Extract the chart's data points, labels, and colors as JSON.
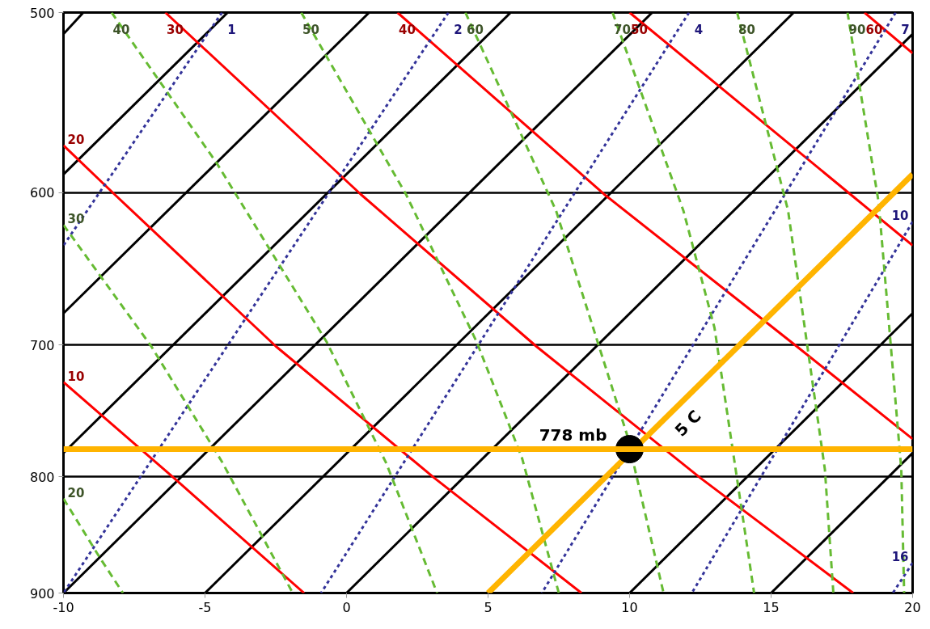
{
  "chart_data": {
    "type": "line",
    "xlim": [
      -10,
      20
    ],
    "ylim": [
      900,
      500
    ],
    "xticks": [
      -10,
      -5,
      0,
      5,
      10,
      15,
      20
    ],
    "yticks": [
      500,
      600,
      700,
      800,
      900
    ],
    "log": "y",
    "grid": "y",
    "series": [
      {
        "color": "#000000",
        "x": [
          -9.3,
          -10
        ],
        "values": [
          500,
          511
        ]
      },
      {
        "color": "#000000",
        "x": [
          -4.2,
          -10
        ],
        "values": [
          500,
          589
        ]
      },
      {
        "color": "#000000",
        "x": [
          0.8,
          -10
        ],
        "values": [
          500,
          678
        ]
      },
      {
        "color": "#000000",
        "x": [
          5.8,
          -10
        ],
        "values": [
          500,
          781
        ]
      },
      {
        "color": "#000000",
        "x": [
          10.8,
          -10
        ],
        "values": [
          500,
          900
        ]
      },
      {
        "color": "#000000",
        "x": [
          15.8,
          -5
        ],
        "values": [
          500,
          900
        ]
      },
      {
        "color": "#000000",
        "x": [
          20,
          0
        ],
        "values": [
          511,
          900
        ]
      },
      {
        "color": "#000000",
        "x": [
          20,
          10
        ],
        "values": [
          678,
          900
        ]
      },
      {
        "color": "#000000",
        "x": [
          20,
          15
        ],
        "values": [
          781,
          900
        ]
      },
      {
        "name": "10",
        "color": "#ff0000",
        "x": [
          -10,
          -6.1,
          -1.5
        ],
        "values": [
          727,
          801,
          900
        ]
      },
      {
        "name": "20",
        "color": "#ff0000",
        "x": [
          -10,
          -8.2,
          -2.5,
          3.1,
          8.3
        ],
        "values": [
          572,
          601,
          701,
          801,
          900
        ]
      },
      {
        "name": "30",
        "color": "#ff0000",
        "x": [
          -6.4,
          0.5,
          6.7,
          12.5,
          17.9
        ],
        "values": [
          500,
          601,
          701,
          801,
          900
        ]
      },
      {
        "name": "40",
        "color": "#ff0000",
        "x": [
          1.8,
          9.1,
          15.9,
          20
        ],
        "values": [
          500,
          601,
          701,
          770
        ]
      },
      {
        "name": "50",
        "color": "#ff0000",
        "x": [
          10.0,
          17.8,
          20
        ],
        "values": [
          500,
          601,
          633
        ]
      },
      {
        "name": "60",
        "color": "#ff0000",
        "x": [
          18.3,
          20
        ],
        "values": [
          500,
          521
        ]
      },
      {
        "name": "1",
        "color": "#333399",
        "line_style": "dotted",
        "x": [
          -4.4,
          -10
        ],
        "values": [
          500,
          633
        ]
      },
      {
        "name": "2",
        "color": "#333399",
        "line_style": "dotted",
        "x": [
          3.6,
          -10
        ],
        "values": [
          500,
          900
        ]
      },
      {
        "name": "4",
        "color": "#333399",
        "line_style": "dotted",
        "x": [
          12.1,
          -0.9
        ],
        "values": [
          500,
          900
        ]
      },
      {
        "name": "7",
        "color": "#333399",
        "line_style": "dotted",
        "x": [
          19.4,
          6.9
        ],
        "values": [
          500,
          900
        ]
      },
      {
        "name": "10",
        "color": "#333399",
        "line_style": "dotted",
        "x": [
          20,
          12.2
        ],
        "values": [
          618,
          900
        ]
      },
      {
        "name": "16",
        "color": "#333399",
        "line_style": "dotted",
        "x": [
          20,
          19.3
        ],
        "values": [
          873,
          900
        ]
      },
      {
        "name": "20",
        "color": "#66bb33",
        "line_style": "dashed",
        "x": [
          -10,
          -8.7,
          -7.9
        ],
        "values": [
          818,
          869,
          900
        ]
      },
      {
        "name": "30",
        "color": "#66bb33",
        "line_style": "dashed",
        "x": [
          -10,
          -6.9,
          -4.4,
          -1.9
        ],
        "values": [
          620,
          701,
          788,
          900
        ]
      },
      {
        "name": "40",
        "color": "#66bb33",
        "line_style": "dashed",
        "x": [
          -8.3,
          -4.6,
          -0.7,
          1.4,
          3.2
        ],
        "values": [
          500,
          582,
          698,
          789,
          900
        ]
      },
      {
        "name": "50",
        "color": "#66bb33",
        "line_style": "dashed",
        "x": [
          -1.6,
          2.1,
          4.6,
          6.2,
          7.5
        ],
        "values": [
          500,
          601,
          698,
          785,
          900
        ]
      },
      {
        "name": "60",
        "color": "#66bb33",
        "line_style": "dashed",
        "x": [
          4.2,
          7.4,
          9.9,
          11.2
        ],
        "values": [
          500,
          611,
          766,
          900
        ]
      },
      {
        "name": "70",
        "color": "#66bb33",
        "line_style": "dashed",
        "x": [
          9.4,
          11.9,
          13.0,
          14.4
        ],
        "values": [
          500,
          611,
          688,
          900
        ]
      },
      {
        "name": "80",
        "color": "#66bb33",
        "line_style": "dashed",
        "x": [
          13.8,
          15.6,
          16.9,
          17.2
        ],
        "values": [
          500,
          611,
          794,
          900
        ]
      },
      {
        "name": "90",
        "color": "#66bb33",
        "line_style": "dashed",
        "x": [
          17.7,
          18.8,
          19.6,
          19.7
        ],
        "values": [
          500,
          606,
          794,
          900
        ]
      },
      {
        "color": "#ffb400",
        "x": [
          20,
          5
        ],
        "values": [
          589,
          900
        ]
      },
      {
        "type": "scatter",
        "marker": "circle",
        "color": "#000000",
        "x": [
          10
        ],
        "values": [
          778
        ]
      }
    ],
    "ref_lines": [
      {
        "axis": "y",
        "value": 778,
        "label": "778 mb",
        "color": "#ffb400"
      }
    ],
    "annotations": [
      "5 C"
    ]
  }
}
